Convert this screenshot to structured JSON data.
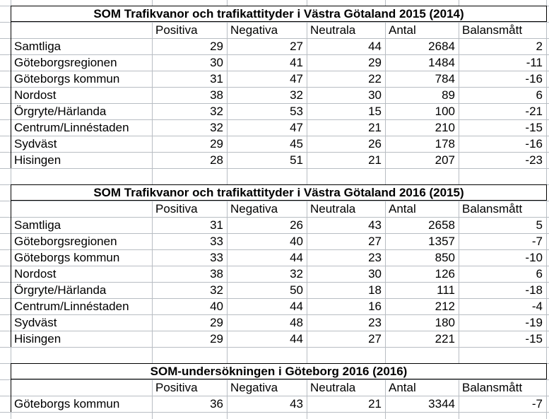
{
  "colors": {
    "background": "#ffffff",
    "gridline": "#b8bdc3",
    "table_border": "#000000",
    "text": "#000000"
  },
  "tables": [
    {
      "title": "SOM Trafikvanor och trafikattityder i Västra Götaland 2015 (2014)",
      "headers": [
        "Positiva",
        "Negativa",
        "Neutrala",
        "Antal",
        "Balansmått"
      ],
      "rows": [
        {
          "label": "Samtliga",
          "values": [
            "29",
            "27",
            "44",
            "2684",
            "2"
          ]
        },
        {
          "label": "Göteborgsregionen",
          "values": [
            "30",
            "41",
            "29",
            "1484",
            "-11"
          ]
        },
        {
          "label": "Göteborgs kommun",
          "values": [
            "31",
            "47",
            "22",
            "784",
            "-16"
          ]
        },
        {
          "label": "Nordost",
          "values": [
            "38",
            "32",
            "30",
            "89",
            "6"
          ]
        },
        {
          "label": "Örgryte/Härlanda",
          "values": [
            "32",
            "53",
            "15",
            "100",
            "-21"
          ]
        },
        {
          "label": "Centrum/Linnéstaden",
          "values": [
            "32",
            "47",
            "21",
            "210",
            "-15"
          ]
        },
        {
          "label": "Sydväst",
          "values": [
            "29",
            "45",
            "26",
            "178",
            "-16"
          ]
        },
        {
          "label": "Hisingen",
          "values": [
            "28",
            "51",
            "21",
            "207",
            "-23"
          ]
        }
      ]
    },
    {
      "title": "SOM Trafikvanor och trafikattityder i Västra Götaland 2016 (2015)",
      "headers": [
        "Positiva",
        "Negativa",
        "Neutrala",
        "Antal",
        "Balansmått"
      ],
      "rows": [
        {
          "label": "Samtliga",
          "values": [
            "31",
            "26",
            "43",
            "2658",
            "5"
          ]
        },
        {
          "label": "Göteborgsregionen",
          "values": [
            "33",
            "40",
            "27",
            "1357",
            "-7"
          ]
        },
        {
          "label": "Göteborgs kommun",
          "values": [
            "33",
            "44",
            "23",
            "850",
            "-10"
          ]
        },
        {
          "label": "Nordost",
          "values": [
            "38",
            "32",
            "30",
            "126",
            "6"
          ]
        },
        {
          "label": "Örgryte/Härlanda",
          "values": [
            "32",
            "50",
            "18",
            "111",
            "-18"
          ]
        },
        {
          "label": "Centrum/Linnéstaden",
          "values": [
            "40",
            "44",
            "16",
            "212",
            "-4"
          ]
        },
        {
          "label": "Sydväst",
          "values": [
            "29",
            "48",
            "23",
            "180",
            "-19"
          ]
        },
        {
          "label": "Hisingen",
          "values": [
            "29",
            "44",
            "27",
            "221",
            "-15"
          ]
        }
      ]
    },
    {
      "title": "SOM-undersökningen i Göteborg 2016 (2016)",
      "headers": [
        "Positiva",
        "Negativa",
        "Neutrala",
        "Antal",
        "Balansmått"
      ],
      "rows": [
        {
          "label": "Göteborgs kommun",
          "values": [
            "36",
            "43",
            "21",
            "3344",
            "-7"
          ]
        }
      ]
    }
  ]
}
